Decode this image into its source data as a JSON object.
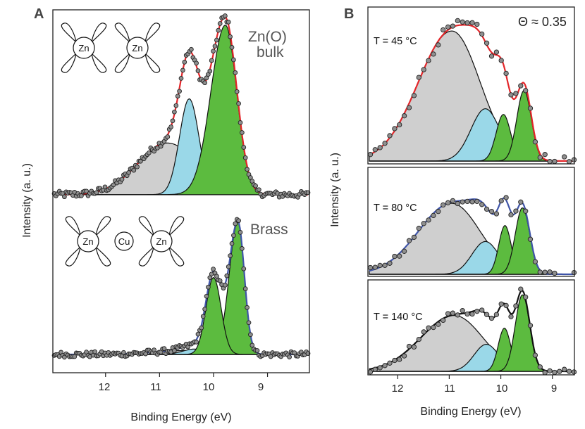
{
  "panelA": {
    "letter": "A",
    "ylabel": "Intensity (a. u.)",
    "xlabel": "Binding Energy (eV)",
    "xticks": [
      "12",
      "11",
      "10",
      "9"
    ],
    "xrange_ev": [
      12.95,
      8.25
    ],
    "top_label_line1": "Zn(O)",
    "top_label_line2": "bulk",
    "bottom_label": "Brass",
    "atom_zn": "Zn",
    "atom_cu": "Cu"
  },
  "panelB": {
    "letter": "B",
    "ylabel": "Intensity (a. u.)",
    "xlabel": "Binding Energy (eV)",
    "xticks": [
      "12",
      "11",
      "10",
      "9"
    ],
    "xrange_ev": [
      12.55,
      8.6
    ],
    "coverage_label": "Θ ≈ 0.35",
    "temp_45": "T = 45 °C",
    "temp_80": "T = 80 °C",
    "temp_140": "T = 140 °C"
  },
  "colors": {
    "green": "#5cbb3f",
    "cyan": "#9ad8e8",
    "gray": "#cfcfcf",
    "fit_red": "#e3262a",
    "fit_blue": "#3f54a8",
    "fit_black": "#111111",
    "dots": "#8f8f8f"
  },
  "chart_data": [
    {
      "type": "line",
      "title": "Zn(O) bulk",
      "xlabel": "Binding Energy (eV)",
      "ylabel": "Intensity (a. u.)",
      "xlim": [
        12.95,
        8.25
      ],
      "fit_color": "red",
      "components": [
        {
          "name": "green",
          "center_eV": 9.78,
          "height": 0.92,
          "sigma_low_eV": 0.27,
          "sigma_high_eV": 0.21
        },
        {
          "name": "cyan",
          "center_eV": 10.45,
          "height": 0.52,
          "sigma_low_eV": 0.18,
          "sigma_high_eV": 0.18
        },
        {
          "name": "gray",
          "center_eV": 10.85,
          "height": 0.28,
          "sigma_low_eV": 0.55,
          "sigma_high_eV": 0.55
        }
      ],
      "baseline": 0.02
    },
    {
      "type": "line",
      "title": "Brass",
      "xlabel": "Binding Energy (eV)",
      "ylabel": "Intensity (a. u.)",
      "xlim": [
        12.95,
        8.25
      ],
      "fit_color": "blue",
      "components": [
        {
          "name": "green_1",
          "center_eV": 9.55,
          "height": 0.86,
          "sigma_low_eV": 0.16,
          "sigma_high_eV": 0.12
        },
        {
          "name": "green_2",
          "center_eV": 10.0,
          "height": 0.5,
          "sigma_low_eV": 0.14,
          "sigma_high_eV": 0.14
        },
        {
          "name": "cyan",
          "center_eV": 10.35,
          "height": 0.035,
          "sigma_low_eV": 0.22,
          "sigma_high_eV": 0.22
        },
        {
          "name": "gray",
          "center_eV": 10.55,
          "height": 0.025,
          "sigma_low_eV": 0.55,
          "sigma_high_eV": 0.55
        }
      ],
      "baseline": 0.0
    },
    {
      "type": "line",
      "title": "T = 45 °C",
      "coverage": "Θ ≈ 0.35",
      "xlabel": "Binding Energy (eV)",
      "ylabel": "Intensity (a. u.)",
      "xlim": [
        12.55,
        8.6
      ],
      "fit_color": "red",
      "components": [
        {
          "name": "gray",
          "center_eV": 10.95,
          "height": 0.92,
          "sigma_low_eV": 0.65,
          "sigma_high_eV": 0.55
        },
        {
          "name": "cyan",
          "center_eV": 10.3,
          "height": 0.37,
          "sigma_low_eV": 0.28,
          "sigma_high_eV": 0.28
        },
        {
          "name": "green_1",
          "center_eV": 9.95,
          "height": 0.33,
          "sigma_low_eV": 0.14,
          "sigma_high_eV": 0.14
        },
        {
          "name": "green_2",
          "center_eV": 9.55,
          "height": 0.5,
          "sigma_low_eV": 0.14,
          "sigma_high_eV": 0.14
        }
      ],
      "baseline": 0.0
    },
    {
      "type": "line",
      "title": "T = 80 °C",
      "xlabel": "Binding Energy (eV)",
      "ylabel": "Intensity (a. u.)",
      "xlim": [
        12.55,
        8.6
      ],
      "fit_color": "blue",
      "components": [
        {
          "name": "gray",
          "center_eV": 10.95,
          "height": 0.8,
          "sigma_low_eV": 0.65,
          "sigma_high_eV": 0.55
        },
        {
          "name": "cyan",
          "center_eV": 10.3,
          "height": 0.37,
          "sigma_low_eV": 0.26,
          "sigma_high_eV": 0.26
        },
        {
          "name": "green_1",
          "center_eV": 9.92,
          "height": 0.55,
          "sigma_low_eV": 0.12,
          "sigma_high_eV": 0.12
        },
        {
          "name": "green_2",
          "center_eV": 9.58,
          "height": 0.75,
          "sigma_low_eV": 0.14,
          "sigma_high_eV": 0.14
        }
      ],
      "baseline": 0.0
    },
    {
      "type": "line",
      "title": "T = 140 °C",
      "xlabel": "Binding Energy (eV)",
      "ylabel": "Intensity (a. u.)",
      "xlim": [
        12.55,
        8.6
      ],
      "fit_color": "black",
      "components": [
        {
          "name": "gray",
          "center_eV": 10.9,
          "height": 0.62,
          "sigma_low_eV": 0.65,
          "sigma_high_eV": 0.55
        },
        {
          "name": "cyan",
          "center_eV": 10.28,
          "height": 0.3,
          "sigma_low_eV": 0.24,
          "sigma_high_eV": 0.24
        },
        {
          "name": "green_1",
          "center_eV": 9.93,
          "height": 0.48,
          "sigma_low_eV": 0.12,
          "sigma_high_eV": 0.12
        },
        {
          "name": "green_2",
          "center_eV": 9.58,
          "height": 0.85,
          "sigma_low_eV": 0.14,
          "sigma_high_eV": 0.14
        }
      ],
      "baseline": 0.0
    }
  ]
}
